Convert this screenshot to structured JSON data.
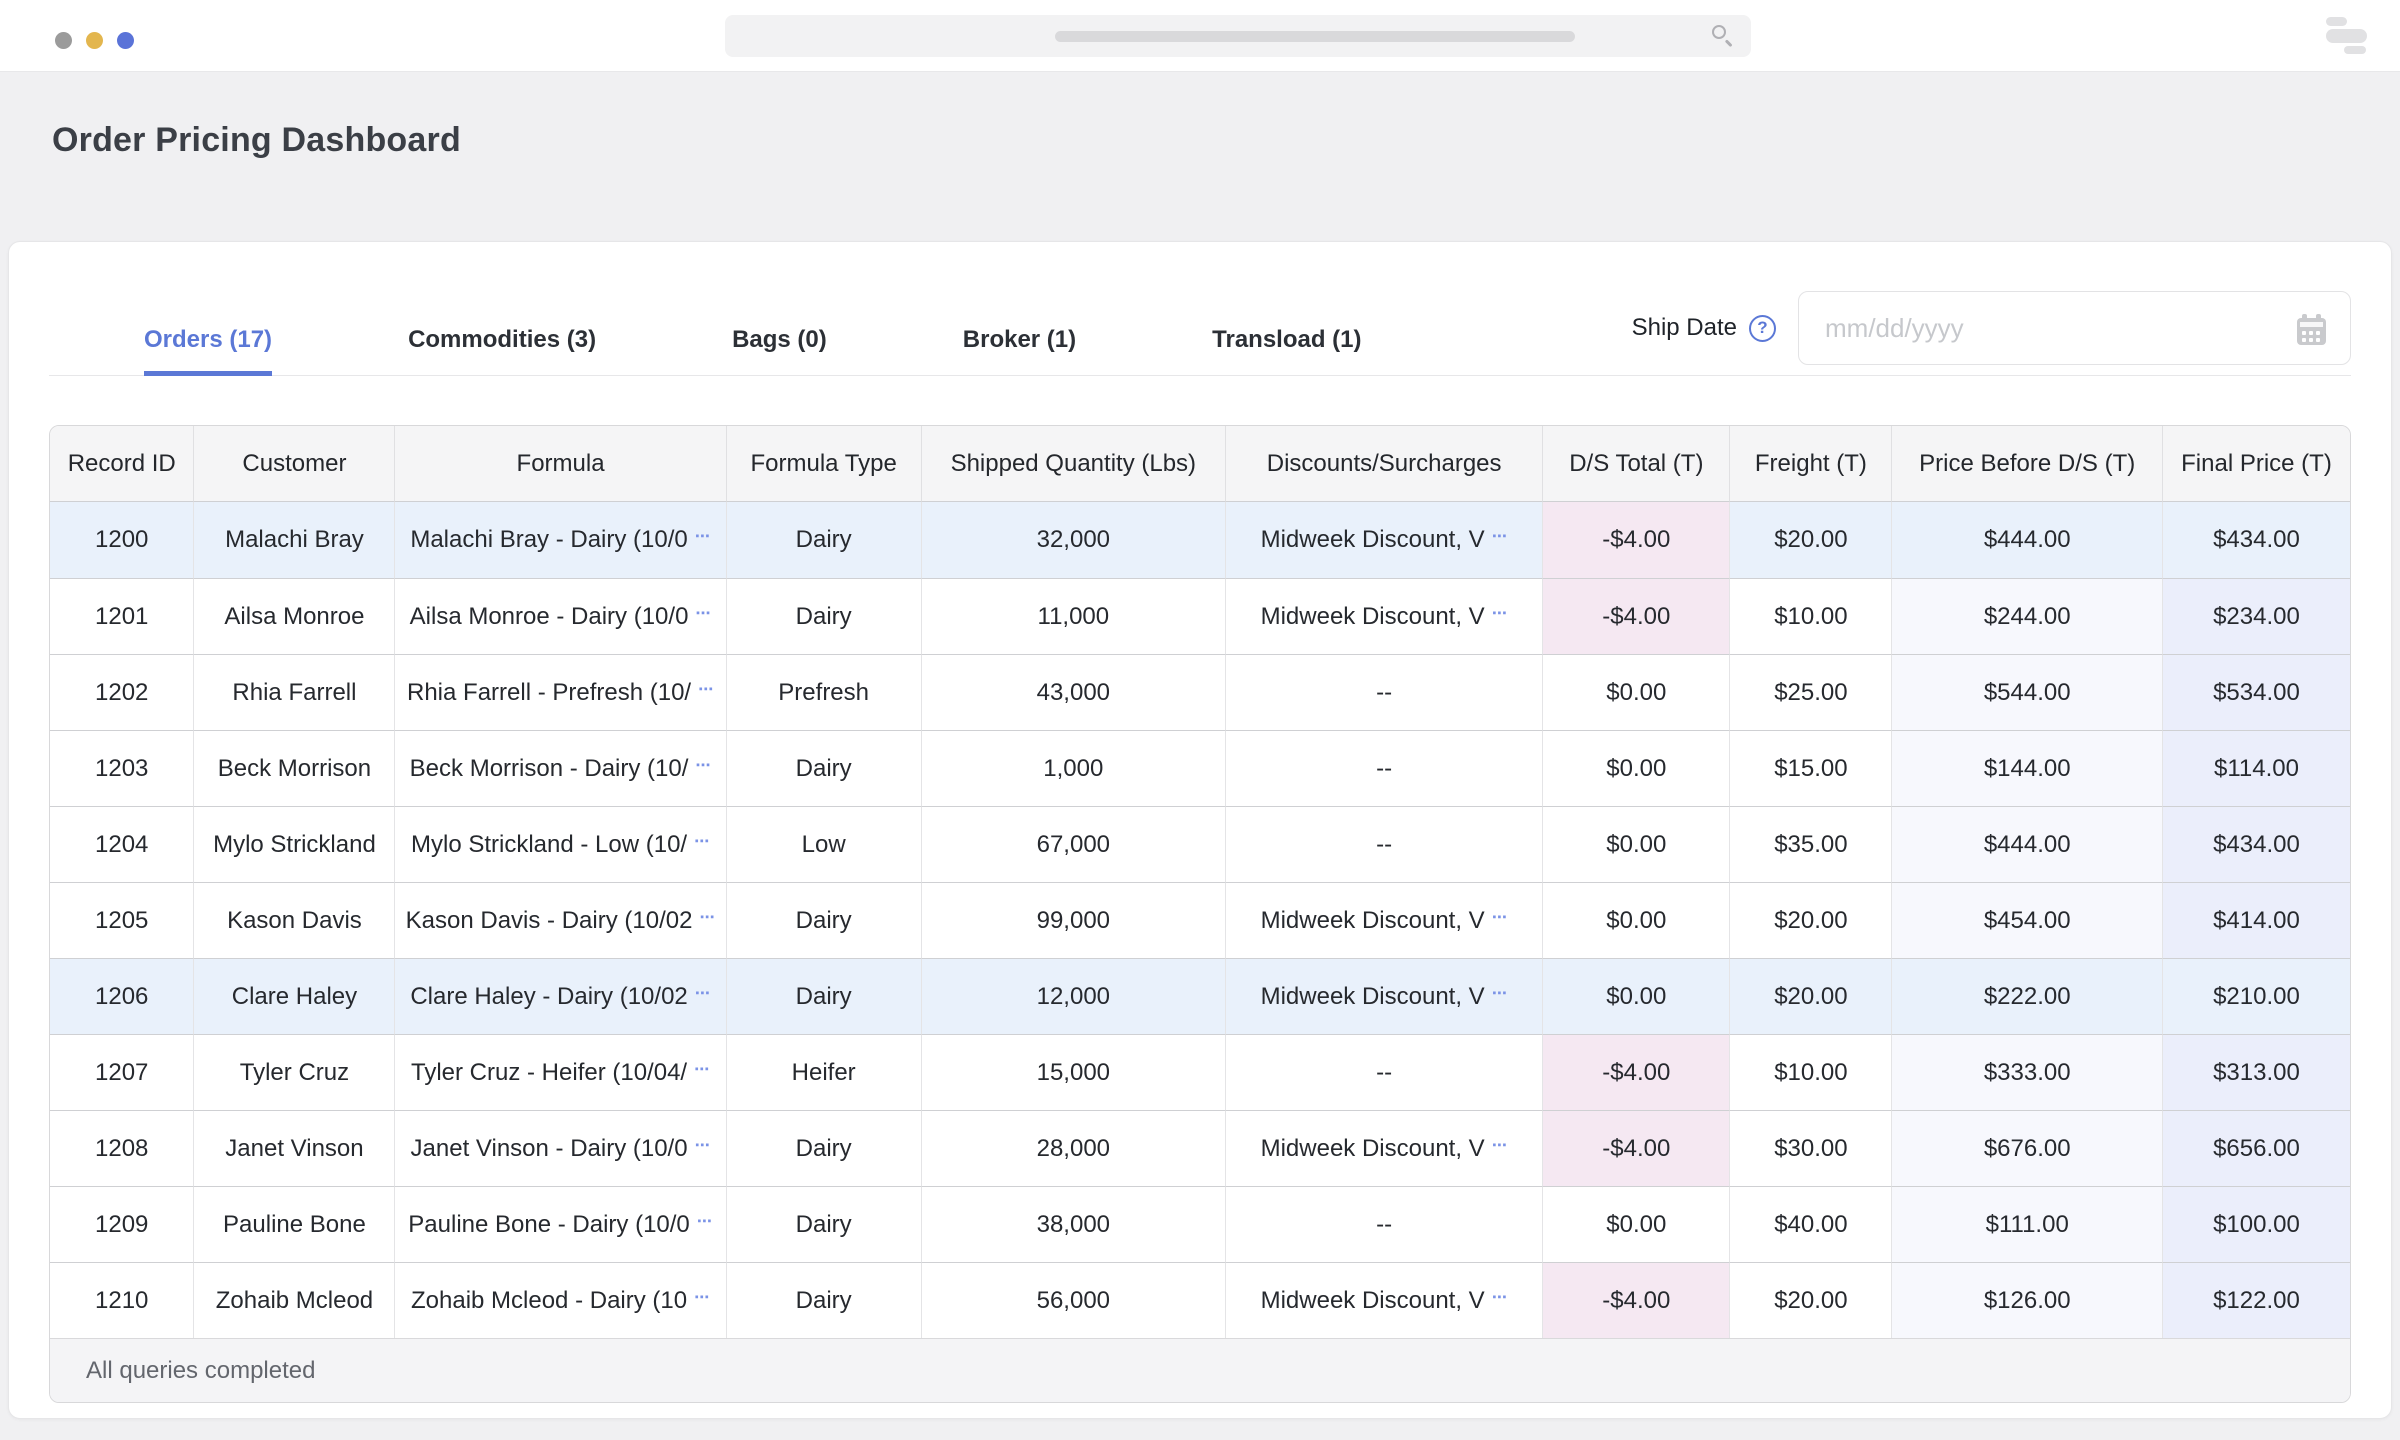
{
  "titlebar": {
    "window_dots": [
      "#9b9b9b",
      "#e3b64e",
      "#5a73d8"
    ],
    "icons": {
      "search": "magnifier",
      "menu_skeleton": "stacked-bars"
    }
  },
  "page": {
    "title": "Order Pricing Dashboard"
  },
  "tabs": [
    {
      "label": "Orders (17)",
      "active": true
    },
    {
      "label": "Commodities (3)",
      "active": false
    },
    {
      "label": "Bags (0)",
      "active": false
    },
    {
      "label": "Broker (1)",
      "active": false
    },
    {
      "label": "Transload (1)",
      "active": false
    }
  ],
  "ship_date": {
    "label": "Ship Date",
    "placeholder": "mm/dd/yyyy"
  },
  "icons": {
    "help_glyph": "?",
    "truncation_glyph": "⋯",
    "calendar": "calendar-grid"
  },
  "table": {
    "columns": [
      "Record ID",
      "Customer",
      "Formula",
      "Formula Type",
      "Shipped Quantity (Lbs)",
      "Discounts/Surcharges",
      "D/S Total (T)",
      "Freight (T)",
      "Price Before D/S (T)",
      "Final Price (T)"
    ],
    "rows": [
      {
        "record_id": "1200",
        "customer": "Malachi Bray",
        "formula": "Malachi Bray - Dairy (10/0",
        "formula_truncated": true,
        "formula_type": "Dairy",
        "shipped_qty": "32,000",
        "discounts": "Midweek Discount, V",
        "discounts_truncated": true,
        "ds_total": "-$4.00",
        "ds_negative": true,
        "freight": "$20.00",
        "price_before_ds": "$444.00",
        "final_price": "$434.00",
        "highlighted": true
      },
      {
        "record_id": "1201",
        "customer": "Ailsa Monroe",
        "formula": "Ailsa Monroe - Dairy (10/0",
        "formula_truncated": true,
        "formula_type": "Dairy",
        "shipped_qty": "11,000",
        "discounts": "Midweek Discount, V",
        "discounts_truncated": true,
        "ds_total": "-$4.00",
        "ds_negative": true,
        "freight": "$10.00",
        "price_before_ds": "$244.00",
        "final_price": "$234.00",
        "highlighted": false
      },
      {
        "record_id": "1202",
        "customer": "Rhia Farrell",
        "formula": "Rhia Farrell - Prefresh (10/",
        "formula_truncated": true,
        "formula_type": "Prefresh",
        "shipped_qty": "43,000",
        "discounts": "--",
        "discounts_truncated": false,
        "ds_total": "$0.00",
        "ds_negative": false,
        "freight": "$25.00",
        "price_before_ds": "$544.00",
        "final_price": "$534.00",
        "highlighted": false
      },
      {
        "record_id": "1203",
        "customer": "Beck Morrison",
        "formula": "Beck Morrison - Dairy (10/",
        "formula_truncated": true,
        "formula_type": "Dairy",
        "shipped_qty": "1,000",
        "discounts": "--",
        "discounts_truncated": false,
        "ds_total": "$0.00",
        "ds_negative": false,
        "freight": "$15.00",
        "price_before_ds": "$144.00",
        "final_price": "$114.00",
        "highlighted": false
      },
      {
        "record_id": "1204",
        "customer": "Mylo Strickland",
        "formula": "Mylo Strickland - Low (10/",
        "formula_truncated": true,
        "formula_type": "Low",
        "shipped_qty": "67,000",
        "discounts": "--",
        "discounts_truncated": false,
        "ds_total": "$0.00",
        "ds_negative": false,
        "freight": "$35.00",
        "price_before_ds": "$444.00",
        "final_price": "$434.00",
        "highlighted": false
      },
      {
        "record_id": "1205",
        "customer": "Kason Davis",
        "formula": "Kason Davis - Dairy (10/02",
        "formula_truncated": true,
        "formula_type": "Dairy",
        "shipped_qty": "99,000",
        "discounts": "Midweek Discount, V",
        "discounts_truncated": true,
        "ds_total": "$0.00",
        "ds_negative": false,
        "freight": "$20.00",
        "price_before_ds": "$454.00",
        "final_price": "$414.00",
        "highlighted": false
      },
      {
        "record_id": "1206",
        "customer": "Clare Haley",
        "formula": "Clare Haley - Dairy (10/02",
        "formula_truncated": true,
        "formula_type": "Dairy",
        "shipped_qty": "12,000",
        "discounts": "Midweek Discount, V",
        "discounts_truncated": true,
        "ds_total": "$0.00",
        "ds_negative": false,
        "freight": "$20.00",
        "price_before_ds": "$222.00",
        "final_price": "$210.00",
        "highlighted": true
      },
      {
        "record_id": "1207",
        "customer": "Tyler Cruz",
        "formula": "Tyler Cruz - Heifer (10/04/",
        "formula_truncated": true,
        "formula_type": "Heifer",
        "shipped_qty": "15,000",
        "discounts": "--",
        "discounts_truncated": false,
        "ds_total": "-$4.00",
        "ds_negative": true,
        "freight": "$10.00",
        "price_before_ds": "$333.00",
        "final_price": "$313.00",
        "highlighted": false
      },
      {
        "record_id": "1208",
        "customer": "Janet Vinson",
        "formula": "Janet Vinson - Dairy (10/0",
        "formula_truncated": true,
        "formula_type": "Dairy",
        "shipped_qty": "28,000",
        "discounts": "Midweek Discount, V",
        "discounts_truncated": true,
        "ds_total": "-$4.00",
        "ds_negative": true,
        "freight": "$30.00",
        "price_before_ds": "$676.00",
        "final_price": "$656.00",
        "highlighted": false
      },
      {
        "record_id": "1209",
        "customer": "Pauline Bone",
        "formula": "Pauline Bone - Dairy (10/0",
        "formula_truncated": true,
        "formula_type": "Dairy",
        "shipped_qty": "38,000",
        "discounts": "--",
        "discounts_truncated": false,
        "ds_total": "$0.00",
        "ds_negative": false,
        "freight": "$40.00",
        "price_before_ds": "$111.00",
        "final_price": "$100.00",
        "highlighted": false
      },
      {
        "record_id": "1210",
        "customer": "Zohaib Mcleod",
        "formula": "Zohaib Mcleod - Dairy (10",
        "formula_truncated": true,
        "formula_type": "Dairy",
        "shipped_qty": "56,000",
        "discounts": "Midweek Discount, V",
        "discounts_truncated": true,
        "ds_total": "-$4.00",
        "ds_negative": true,
        "freight": "$20.00",
        "price_before_ds": "$126.00",
        "final_price": "$122.00",
        "highlighted": false
      }
    ]
  },
  "footer": {
    "status": "All queries completed"
  },
  "colors": {
    "accent_blue": "#5b78d6",
    "row_highlight": "#e9f1fb",
    "ds_negative_bg": "#f5e8f2",
    "price_before_bg": "#f7f8fd",
    "final_price_bg": "#ebeefb"
  }
}
